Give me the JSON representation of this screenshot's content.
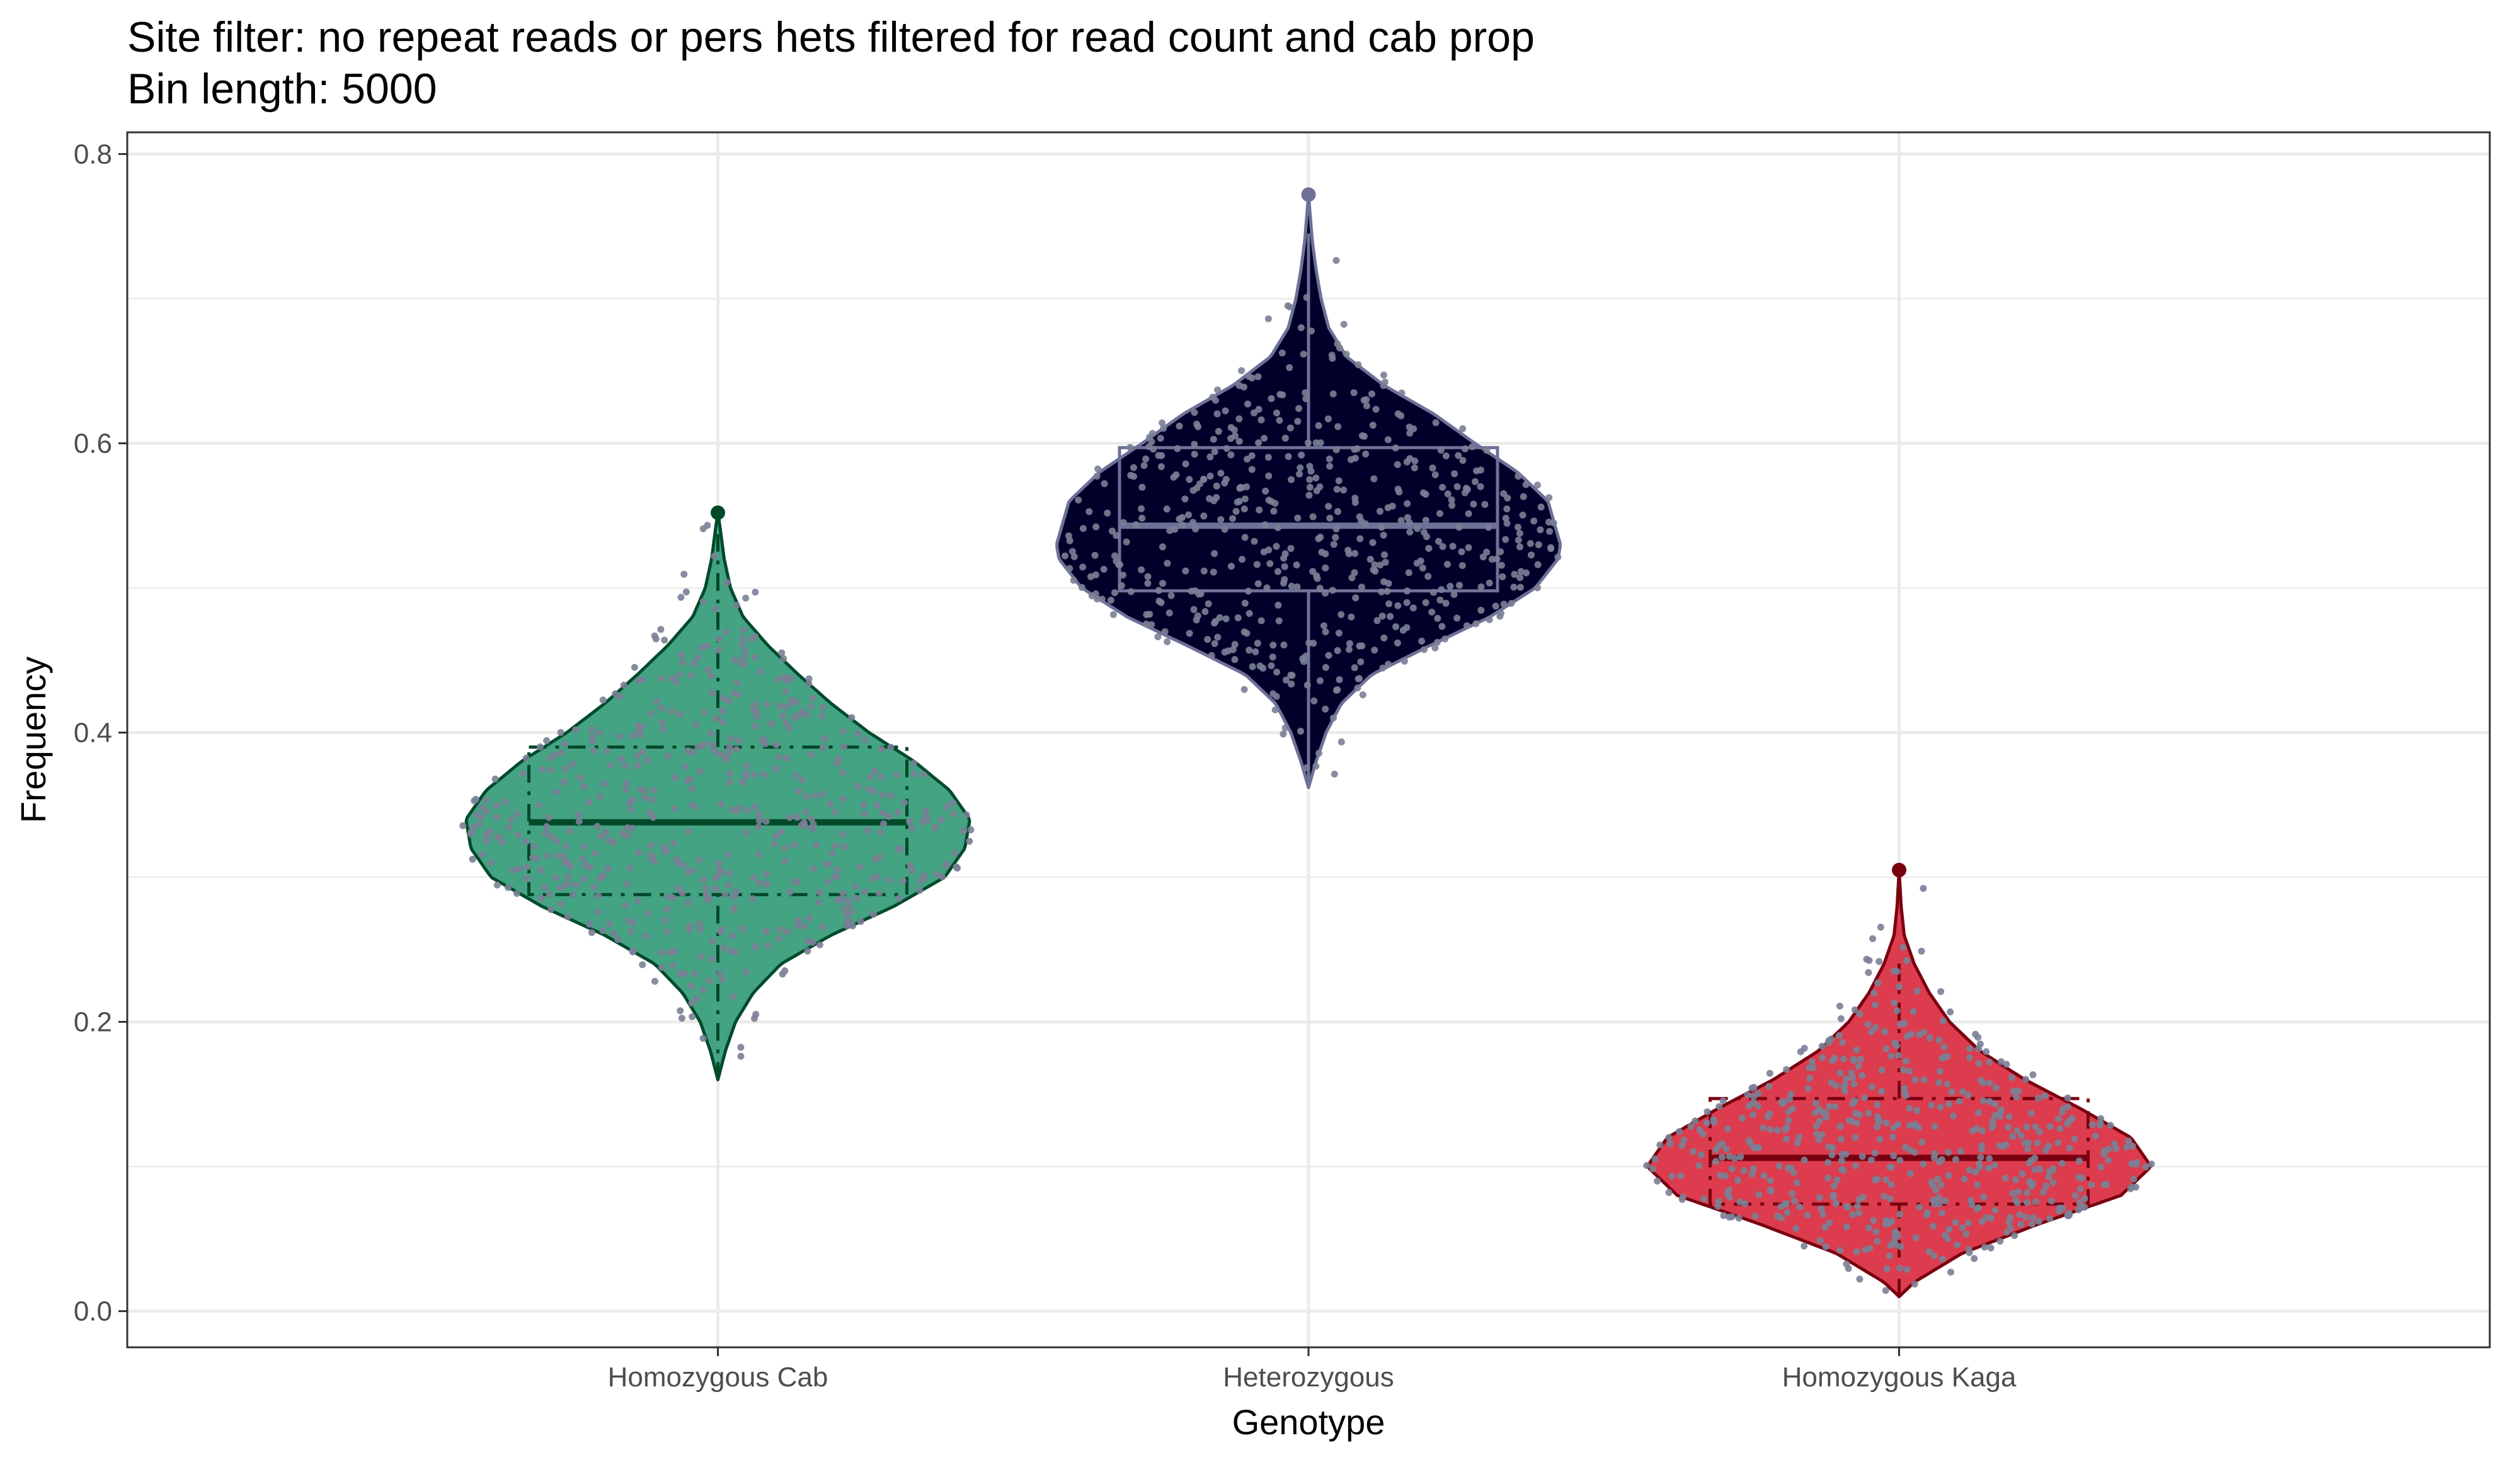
{
  "chart_data": {
    "type": "violin",
    "title": "Site filter: no repeat reads or pers hets filtered for read count and cab prop",
    "subtitle": "Bin length: 5000",
    "xlabel": "Genotype",
    "ylabel": "Frequency",
    "ylim": [
      -0.025,
      0.815
    ],
    "yticks": [
      0.0,
      0.2,
      0.4,
      0.6,
      0.8
    ],
    "ytick_labels": [
      "0.0",
      "0.2",
      "0.4",
      "0.6",
      "0.8"
    ],
    "grid": true,
    "legend": "none",
    "categories": [
      "Homozygous Cab",
      "Heterozygous",
      "Homozygous Kaga"
    ],
    "series": [
      {
        "category": "Homozygous Cab",
        "fill": "#43a382",
        "line": "#004a2a",
        "points_color": "#7a7f95",
        "box": {
          "min": 0.16,
          "q1": 0.288,
          "median": 0.338,
          "q3": 0.39,
          "whisker_high": 0.538,
          "max": 0.552
        },
        "density_profile": [
          [
            0.16,
            0.0
          ],
          [
            0.18,
            0.03
          ],
          [
            0.2,
            0.07
          ],
          [
            0.22,
            0.14
          ],
          [
            0.24,
            0.25
          ],
          [
            0.26,
            0.45
          ],
          [
            0.28,
            0.7
          ],
          [
            0.3,
            0.9
          ],
          [
            0.32,
            0.98
          ],
          [
            0.34,
            1.0
          ],
          [
            0.36,
            0.92
          ],
          [
            0.38,
            0.78
          ],
          [
            0.4,
            0.6
          ],
          [
            0.42,
            0.45
          ],
          [
            0.44,
            0.32
          ],
          [
            0.46,
            0.2
          ],
          [
            0.48,
            0.1
          ],
          [
            0.5,
            0.05
          ],
          [
            0.52,
            0.025
          ],
          [
            0.54,
            0.01
          ],
          [
            0.552,
            0.0
          ]
        ]
      },
      {
        "category": "Heterozygous",
        "fill": "#00002a",
        "line": "#6e7098",
        "points_color": "#7a7f95",
        "box": {
          "min": 0.362,
          "q1": 0.498,
          "median": 0.543,
          "q3": 0.597,
          "whisker_high": 0.745,
          "max": 0.772
        },
        "density_profile": [
          [
            0.362,
            0.0
          ],
          [
            0.38,
            0.03
          ],
          [
            0.4,
            0.07
          ],
          [
            0.42,
            0.13
          ],
          [
            0.44,
            0.25
          ],
          [
            0.46,
            0.48
          ],
          [
            0.48,
            0.72
          ],
          [
            0.5,
            0.9
          ],
          [
            0.52,
            0.99
          ],
          [
            0.53,
            1.0
          ],
          [
            0.56,
            0.95
          ],
          [
            0.58,
            0.83
          ],
          [
            0.6,
            0.66
          ],
          [
            0.62,
            0.5
          ],
          [
            0.64,
            0.3
          ],
          [
            0.66,
            0.15
          ],
          [
            0.68,
            0.08
          ],
          [
            0.7,
            0.05
          ],
          [
            0.72,
            0.03
          ],
          [
            0.74,
            0.015
          ],
          [
            0.772,
            0.0
          ]
        ]
      },
      {
        "category": "Homozygous Kaga",
        "fill": "#dc3c4d",
        "line": "#7a0010",
        "points_color": "#7a7f95",
        "box": {
          "min": 0.01,
          "q1": 0.074,
          "median": 0.106,
          "q3": 0.147,
          "whisker_high": 0.242,
          "max": 0.305
        },
        "density_profile": [
          [
            0.01,
            0.0
          ],
          [
            0.02,
            0.06
          ],
          [
            0.04,
            0.25
          ],
          [
            0.06,
            0.55
          ],
          [
            0.08,
            0.88
          ],
          [
            0.1,
            1.0
          ],
          [
            0.12,
            0.92
          ],
          [
            0.14,
            0.72
          ],
          [
            0.16,
            0.5
          ],
          [
            0.18,
            0.32
          ],
          [
            0.2,
            0.2
          ],
          [
            0.22,
            0.12
          ],
          [
            0.24,
            0.06
          ],
          [
            0.26,
            0.02
          ],
          [
            0.28,
            0.008
          ],
          [
            0.305,
            0.0
          ]
        ]
      }
    ]
  }
}
